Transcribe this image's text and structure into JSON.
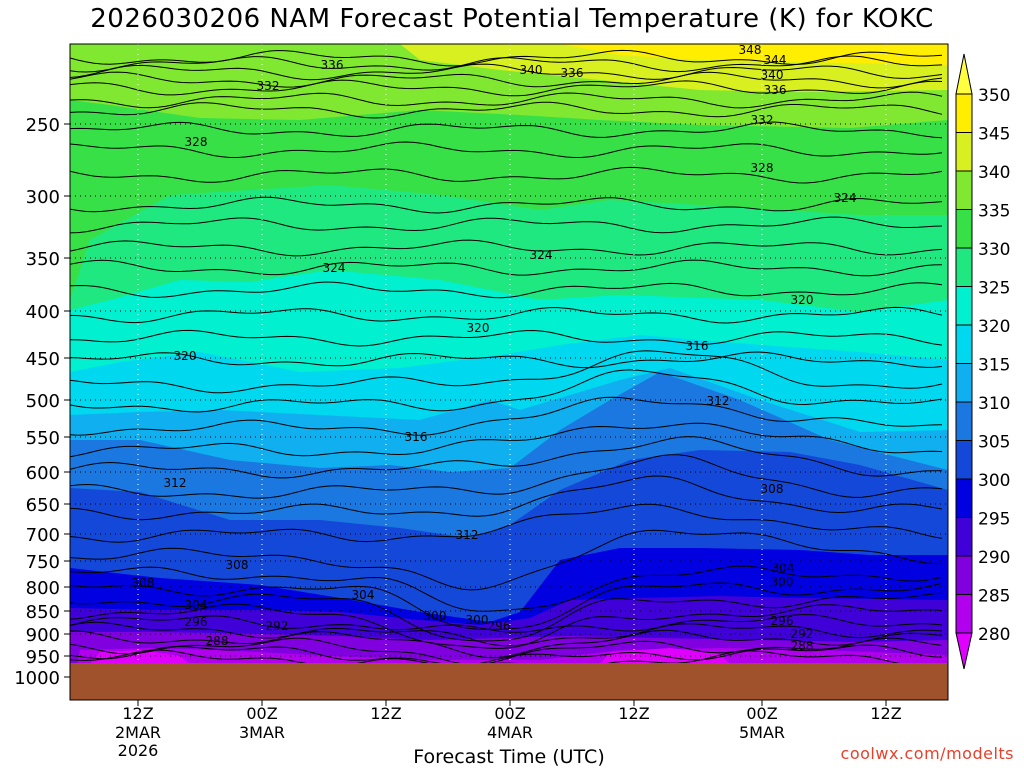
{
  "chart_data": {
    "type": "heatmap",
    "title": "2026030206 NAM Forecast Potential Temperature (K) for KOKC",
    "xlabel": "Forecast Time (UTC)",
    "ylabel": "",
    "y_ticks": [
      250,
      300,
      350,
      400,
      450,
      500,
      550,
      600,
      650,
      700,
      750,
      800,
      850,
      900,
      950,
      1000
    ],
    "y_range": [
      200,
      1000
    ],
    "x_ticks": [
      {
        "label": "12Z",
        "sub": "2MAR",
        "sub2": "2026"
      },
      {
        "label": "00Z",
        "sub": "3MAR",
        "sub2": ""
      },
      {
        "label": "12Z",
        "sub": "",
        "sub2": ""
      },
      {
        "label": "00Z",
        "sub": "4MAR",
        "sub2": ""
      },
      {
        "label": "12Z",
        "sub": "",
        "sub2": ""
      },
      {
        "label": "00Z",
        "sub": "5MAR",
        "sub2": ""
      },
      {
        "label": "12Z",
        "sub": "",
        "sub2": ""
      }
    ],
    "grid": true,
    "colorbar": {
      "levels": [
        280,
        285,
        290,
        295,
        300,
        305,
        310,
        315,
        320,
        325,
        330,
        335,
        340,
        345,
        350
      ],
      "colors": [
        "#e000ff",
        "#b000ee",
        "#8000e0",
        "#4000d8",
        "#0000e0",
        "#1448d8",
        "#1a78e0",
        "#10b0f0",
        "#00d8f0",
        "#00f0d0",
        "#20e880",
        "#38e048",
        "#80e830",
        "#d8f020",
        "#ffee00",
        "#ffff40"
      ]
    },
    "contour_labels": [
      {
        "value": "336"
      },
      {
        "value": "340"
      },
      {
        "value": "336"
      },
      {
        "value": "348"
      },
      {
        "value": "344"
      },
      {
        "value": "340"
      },
      {
        "value": "336"
      },
      {
        "value": "332"
      },
      {
        "value": "332"
      },
      {
        "value": "328"
      },
      {
        "value": "328"
      },
      {
        "value": "324"
      },
      {
        "value": "324"
      },
      {
        "value": "324"
      },
      {
        "value": "320"
      },
      {
        "value": "320"
      },
      {
        "value": "320"
      },
      {
        "value": "316"
      },
      {
        "value": "316"
      },
      {
        "value": "312"
      },
      {
        "value": "312"
      },
      {
        "value": "312"
      },
      {
        "value": "308"
      },
      {
        "value": "308"
      },
      {
        "value": "308"
      },
      {
        "value": "304"
      },
      {
        "value": "304"
      },
      {
        "value": "304"
      },
      {
        "value": "300"
      },
      {
        "value": "300"
      },
      {
        "value": "300"
      },
      {
        "value": "296"
      },
      {
        "value": "296"
      },
      {
        "value": "296"
      },
      {
        "value": "292"
      },
      {
        "value": "292"
      },
      {
        "value": "288"
      },
      {
        "value": "288"
      }
    ]
  },
  "watermark": "coolwx.com/modelts"
}
